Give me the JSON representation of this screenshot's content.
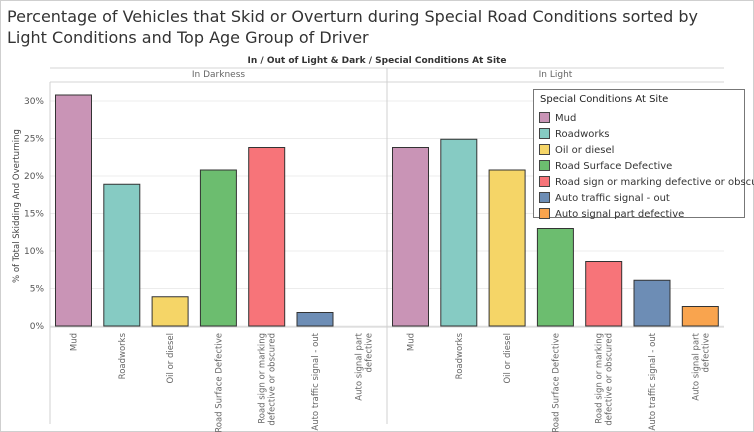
{
  "title": "Percentage of Vehicles that Skid or Overturn during Special Road Conditions sorted by Light Conditions and Top Age Group of Driver",
  "chart_data": {
    "type": "bar",
    "column_header": "In / Out of Light & Dark  /  Special Conditions At Site",
    "ylabel": "% of Total Skidding And Overturning",
    "ylim": [
      0,
      32
    ],
    "yticks": [
      "0%",
      "5%",
      "10%",
      "15%",
      "20%",
      "25%",
      "30%"
    ],
    "ytick_values": [
      0,
      5,
      10,
      15,
      20,
      25,
      30
    ],
    "categories": [
      "Mud",
      "Roadworks",
      "Oil or diesel",
      "Road Surface Defective",
      "Road sign or marking defective or obscured",
      "Auto traffic signal - out",
      "Auto signal part defective"
    ],
    "x_tick_lines": [
      [
        "Mud"
      ],
      [
        "Roadworks"
      ],
      [
        "Oil or diesel"
      ],
      [
        "Road Surface Defective"
      ],
      [
        "Road sign or marking",
        "defective or obscured"
      ],
      [
        "Auto traffic signal - out"
      ],
      [
        "Auto signal part",
        "defective"
      ]
    ],
    "colors": [
      "#c994b6",
      "#86cbc3",
      "#f5d567",
      "#6cbd6f",
      "#f77479",
      "#6d8db5",
      "#f9a44e"
    ],
    "panels": [
      {
        "name": "In Darkness",
        "values": [
          30.8,
          18.9,
          3.9,
          20.8,
          23.8,
          1.8,
          0
        ]
      },
      {
        "name": "In Light",
        "values": [
          23.8,
          24.9,
          20.8,
          13.0,
          8.6,
          6.1,
          2.6
        ]
      }
    ],
    "grid": true,
    "legend_position": "top-right"
  },
  "legend": {
    "title": "Special Conditions At Site",
    "items": [
      {
        "label": "Mud",
        "color": "#c994b6"
      },
      {
        "label": "Roadworks",
        "color": "#86cbc3"
      },
      {
        "label": "Oil or diesel",
        "color": "#f5d567"
      },
      {
        "label": "Road Surface Defective",
        "color": "#6cbd6f"
      },
      {
        "label": "Road sign or marking defective or obscured",
        "color": "#f77479"
      },
      {
        "label": "Auto traffic signal - out",
        "color": "#6d8db5"
      },
      {
        "label": "Auto signal part defective",
        "color": "#f9a44e"
      }
    ]
  }
}
